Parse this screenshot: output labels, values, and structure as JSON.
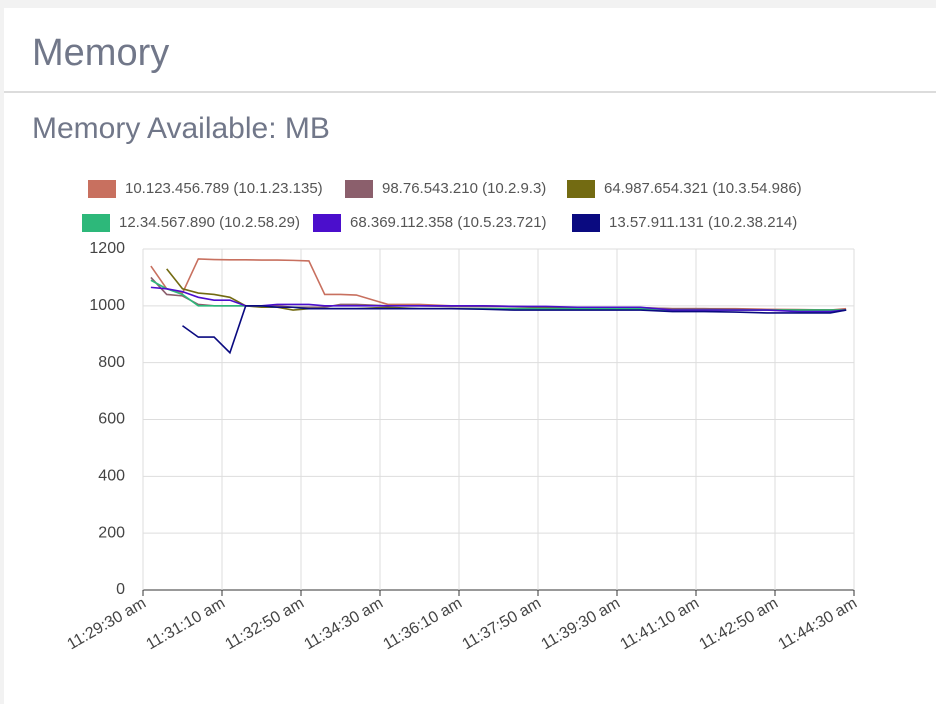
{
  "header": {
    "title": "Memory"
  },
  "chart_data": {
    "type": "line",
    "title": "Memory Available: MB",
    "x": [
      "11:29:40 am",
      "11:30:00 am",
      "11:30:20 am",
      "11:30:40 am",
      "11:31:00 am",
      "11:31:20 am",
      "11:31:40 am",
      "11:32:00 am",
      "11:32:20 am",
      "11:32:40 am",
      "11:33:00 am",
      "11:33:20 am",
      "11:33:40 am",
      "11:34:00 am",
      "11:34:40 am",
      "11:35:20 am",
      "11:36:00 am",
      "11:36:40 am",
      "11:37:20 am",
      "11:38:00 am",
      "11:38:40 am",
      "11:39:20 am",
      "11:40:00 am",
      "11:40:40 am",
      "11:41:20 am",
      "11:42:00 am",
      "11:42:40 am",
      "11:43:20 am",
      "11:44:00 am",
      "11:44:20 am"
    ],
    "series": [
      {
        "name": "10.123.456.789 (10.1.23.135)",
        "color": "#c8705f",
        "values": [
          1140,
          1060,
          1045,
          1165,
          1163,
          1162,
          1162,
          1161,
          1161,
          1160,
          1158,
          1040,
          1040,
          1038,
          1005,
          1005,
          1000,
          1000,
          998,
          995,
          995,
          995,
          993,
          990,
          990,
          990,
          988,
          987,
          985,
          990
        ]
      },
      {
        "name": "98.76.543.210 (10.2.9.3)",
        "color": "#8b5f6c",
        "values": [
          1100,
          1040,
          1035,
          1005,
          1000,
          1000,
          1000,
          1000,
          1000,
          995,
          995,
          995,
          1005,
          1005,
          1000,
          1000,
          998,
          998,
          998,
          995,
          995,
          995,
          993,
          990,
          990,
          988,
          985,
          985,
          985,
          985
        ]
      },
      {
        "name": "64.987.654.321 (10.3.54.986)",
        "color": "#736b12",
        "values": [
          null,
          1130,
          1060,
          1045,
          1040,
          1030,
          1000,
          995,
          995,
          985,
          990,
          990,
          990,
          990,
          995,
          990,
          990,
          990,
          990,
          992,
          992,
          990,
          990,
          985,
          985,
          985,
          985,
          985,
          985,
          985
        ]
      },
      {
        "name": "12.34.567.890 (10.2.58.29)",
        "color": "#2db87a",
        "values": [
          1090,
          1060,
          1040,
          1000,
          1000,
          1000,
          1000,
          1000,
          995,
          995,
          990,
          990,
          990,
          990,
          990,
          990,
          990,
          990,
          990,
          990,
          990,
          990,
          990,
          985,
          985,
          985,
          985,
          985,
          985,
          985
        ]
      },
      {
        "name": "68.369.112.358 (10.5.23.721)",
        "color": "#4b0ecc",
        "values": [
          1065,
          1060,
          1050,
          1030,
          1020,
          1020,
          1000,
          1000,
          1005,
          1005,
          1005,
          1000,
          1000,
          1000,
          1000,
          1000,
          1000,
          1000,
          998,
          998,
          995,
          995,
          995,
          985,
          985,
          985,
          985,
          980,
          980,
          985
        ]
      },
      {
        "name": "13.57.911.131 (10.2.38.214)",
        "color": "#0a0a80",
        "values": [
          null,
          null,
          930,
          890,
          890,
          835,
          1000,
          1000,
          995,
          995,
          990,
          990,
          990,
          990,
          990,
          990,
          990,
          988,
          985,
          985,
          985,
          985,
          985,
          980,
          980,
          978,
          975,
          975,
          975,
          985
        ]
      }
    ],
    "xlim": [
      "11:29:30 am",
      "11:44:30 am"
    ],
    "xticks": [
      "11:29:30 am",
      "11:31:10 am",
      "11:32:50 am",
      "11:34:30 am",
      "11:36:10 am",
      "11:37:50 am",
      "11:39:30 am",
      "11:41:10 am",
      "11:42:50 am",
      "11:44:30 am"
    ],
    "ylim": [
      0,
      1200
    ],
    "yticks": [
      0,
      200,
      400,
      600,
      800,
      1000,
      1200
    ],
    "grid": true
  }
}
